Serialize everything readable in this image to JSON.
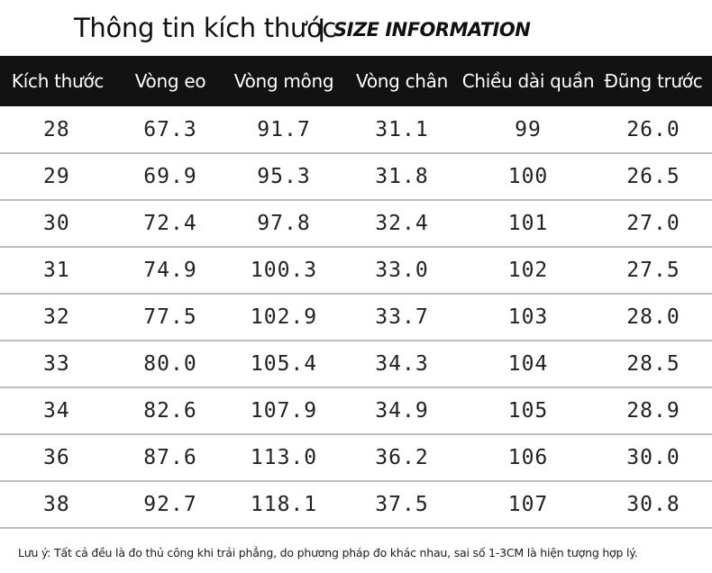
{
  "title": {
    "vi": "Thông tin kích thước",
    "sep": "|",
    "en": "SIZE INFORMATION"
  },
  "table": {
    "headers": [
      "Kích thước",
      "Vòng eo",
      "Vòng mông",
      "Vòng chân",
      "Chiều dài quần",
      "Đũng trước"
    ],
    "rows": [
      [
        "28",
        "67.3",
        "91.7",
        "31.1",
        "99",
        "26.0"
      ],
      [
        "29",
        "69.9",
        "95.3",
        "31.8",
        "100",
        "26.5"
      ],
      [
        "30",
        "72.4",
        "97.8",
        "32.4",
        "101",
        "27.0"
      ],
      [
        "31",
        "74.9",
        "100.3",
        "33.0",
        "102",
        "27.5"
      ],
      [
        "32",
        "77.5",
        "102.9",
        "33.7",
        "103",
        "28.0"
      ],
      [
        "33",
        "80.0",
        "105.4",
        "34.3",
        "104",
        "28.5"
      ],
      [
        "34",
        "82.6",
        "107.9",
        "34.9",
        "105",
        "28.9"
      ],
      [
        "36",
        "87.6",
        "113.0",
        "36.2",
        "106",
        "30.0"
      ],
      [
        "38",
        "92.7",
        "118.1",
        "37.5",
        "107",
        "30.8"
      ]
    ]
  },
  "note": "Lưu ý: Tất cả đều là đo thủ công khi trải phẳng, do phương pháp đo khác nhau, sai số 1-3CM là hiện tượng hợp lý.",
  "colors": {
    "header_bg": "#121212",
    "header_text": "#ffffff",
    "row_divider": "#bdbdbd"
  }
}
